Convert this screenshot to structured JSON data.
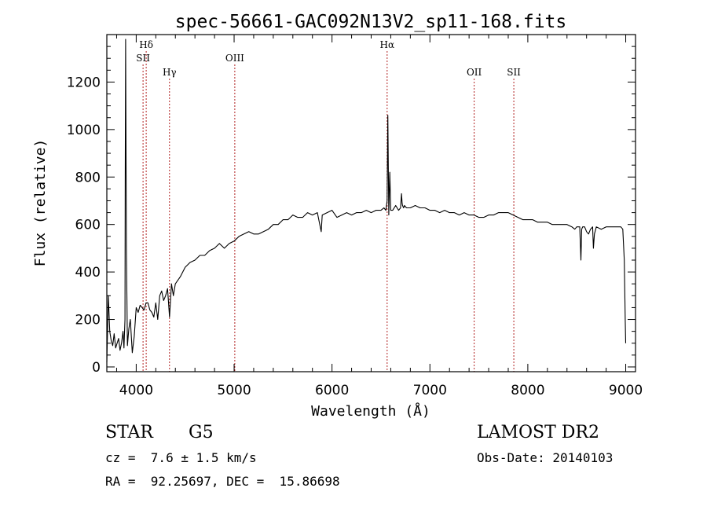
{
  "chart_data": {
    "type": "line",
    "title": "spec-56661-GAC092N13V2_sp11-168.fits",
    "xlabel": "Wavelength (Å)",
    "ylabel": "Flux (relative)",
    "xlim": [
      3700,
      9100
    ],
    "ylim": [
      -20,
      1400
    ],
    "x_ticks": [
      4000,
      5000,
      6000,
      7000,
      8000,
      9000
    ],
    "y_ticks": [
      0,
      200,
      400,
      600,
      800,
      1000,
      1200
    ],
    "grid": false,
    "line_color": "#000000",
    "marker_color": "#b22222",
    "lines": [
      {
        "label": "Hδ",
        "x": 4102,
        "row": 0
      },
      {
        "label": "SII",
        "x": 4070,
        "row": 1
      },
      {
        "label": "Hγ",
        "x": 4340,
        "row": 2
      },
      {
        "label": "OIII",
        "x": 5007,
        "row": 1
      },
      {
        "label": "Hα",
        "x": 6563,
        "row": 0
      },
      {
        "label": "OII",
        "x": 7452,
        "row": 2
      },
      {
        "label": "SII",
        "x": 7857,
        "row": 2
      }
    ],
    "series": [
      {
        "x": [
          3700,
          3715,
          3730,
          3745,
          3760,
          3775,
          3790,
          3805,
          3820,
          3835,
          3850,
          3865,
          3875,
          3885,
          3888,
          3892,
          3900,
          3910,
          3925,
          3940,
          3960,
          3980,
          4000,
          4020,
          4040,
          4060,
          4080,
          4100,
          4120,
          4140,
          4160,
          4180,
          4200,
          4220,
          4240,
          4260,
          4280,
          4300,
          4320,
          4340,
          4360,
          4380,
          4400,
          4450,
          4500,
          4550,
          4600,
          4650,
          4700,
          4750,
          4800,
          4850,
          4900,
          4950,
          5000,
          5050,
          5100,
          5150,
          5200,
          5250,
          5300,
          5350,
          5400,
          5450,
          5500,
          5550,
          5600,
          5650,
          5700,
          5750,
          5800,
          5850,
          5890,
          5900,
          5950,
          6000,
          6050,
          6100,
          6150,
          6200,
          6250,
          6300,
          6350,
          6400,
          6450,
          6500,
          6530,
          6550,
          6563,
          6570,
          6580,
          6590,
          6600,
          6620,
          6650,
          6680,
          6700,
          6710,
          6716,
          6720,
          6731,
          6740,
          6760,
          6800,
          6850,
          6900,
          6950,
          7000,
          7050,
          7100,
          7150,
          7200,
          7250,
          7300,
          7350,
          7400,
          7450,
          7500,
          7550,
          7600,
          7650,
          7700,
          7750,
          7800,
          7850,
          7900,
          7950,
          8000,
          8050,
          8100,
          8150,
          8200,
          8250,
          8300,
          8350,
          8400,
          8450,
          8480,
          8500,
          8520,
          8530,
          8542,
          8550,
          8560,
          8580,
          8600,
          8620,
          8640,
          8662,
          8670,
          8680,
          8700,
          8750,
          8800,
          8850,
          8900,
          8950,
          8970,
          8985,
          8995,
          9000
        ],
        "y": [
          20,
          300,
          150,
          110,
          90,
          140,
          80,
          100,
          120,
          70,
          100,
          150,
          80,
          200,
          780,
          1380,
          500,
          90,
          160,
          200,
          60,
          130,
          250,
          230,
          260,
          250,
          240,
          270,
          270,
          240,
          230,
          210,
          270,
          200,
          300,
          320,
          280,
          300,
          330,
          210,
          350,
          300,
          350,
          380,
          420,
          440,
          450,
          470,
          470,
          490,
          500,
          520,
          500,
          520,
          530,
          550,
          560,
          570,
          560,
          560,
          570,
          580,
          600,
          600,
          620,
          620,
          640,
          630,
          630,
          650,
          640,
          650,
          570,
          640,
          650,
          660,
          630,
          640,
          650,
          640,
          650,
          650,
          660,
          650,
          660,
          660,
          670,
          660,
          700,
          1060,
          640,
          820,
          660,
          660,
          680,
          660,
          670,
          730,
          690,
          680,
          670,
          680,
          670,
          670,
          680,
          670,
          670,
          660,
          660,
          650,
          660,
          650,
          650,
          640,
          650,
          640,
          640,
          630,
          630,
          640,
          640,
          650,
          650,
          650,
          640,
          630,
          620,
          620,
          620,
          610,
          610,
          610,
          600,
          600,
          600,
          600,
          590,
          580,
          590,
          590,
          590,
          450,
          580,
          590,
          590,
          570,
          560,
          580,
          590,
          500,
          560,
          590,
          580,
          590,
          590,
          590,
          590,
          580,
          450,
          200,
          100
        ]
      }
    ]
  },
  "footer": {
    "object_class": "STAR",
    "subclass": "G5",
    "survey": "LAMOST DR2",
    "redshift": "cz =  7.6 ± 1.5 km/s",
    "obs_date": "Obs-Date: 20140103",
    "coords": "RA =  92.25697, DEC =  15.86698"
  }
}
